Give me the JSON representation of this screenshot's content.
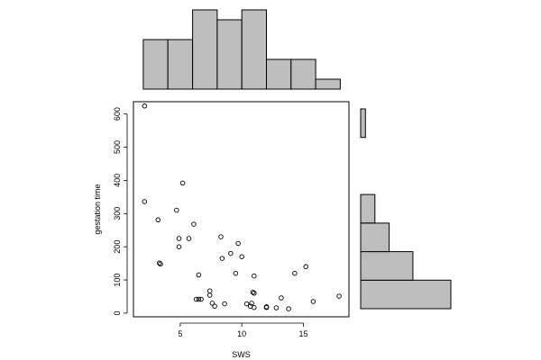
{
  "chart_data": {
    "type": "scatter",
    "title": "",
    "xlabel": "SWS",
    "ylabel": "gestation time",
    "xlim": [
      1.2,
      18.7
    ],
    "ylim": [
      -11,
      637
    ],
    "x_ticks": [
      "5",
      "10",
      "15"
    ],
    "y_ticks": [
      "0",
      "100",
      "200",
      "300",
      "400",
      "500",
      "600"
    ],
    "grid": false,
    "point_style": "open circle",
    "colors": {
      "bar_fill": "#bebebe",
      "stroke": "#000000"
    },
    "points": [
      {
        "x": 2.1,
        "y": 624
      },
      {
        "x": 2.1,
        "y": 336
      },
      {
        "x": 3.2,
        "y": 281
      },
      {
        "x": 3.3,
        "y": 151
      },
      {
        "x": 3.4,
        "y": 148
      },
      {
        "x": 4.7,
        "y": 310
      },
      {
        "x": 4.9,
        "y": 225
      },
      {
        "x": 4.9,
        "y": 200
      },
      {
        "x": 5.2,
        "y": 392
      },
      {
        "x": 5.7,
        "y": 225
      },
      {
        "x": 6.1,
        "y": 268
      },
      {
        "x": 6.3,
        "y": 42
      },
      {
        "x": 6.5,
        "y": 115
      },
      {
        "x": 6.5,
        "y": 42
      },
      {
        "x": 6.7,
        "y": 42
      },
      {
        "x": 7.4,
        "y": 67
      },
      {
        "x": 7.4,
        "y": 54
      },
      {
        "x": 7.6,
        "y": 30
      },
      {
        "x": 7.8,
        "y": 21
      },
      {
        "x": 8.3,
        "y": 230
      },
      {
        "x": 8.4,
        "y": 165
      },
      {
        "x": 8.6,
        "y": 28
      },
      {
        "x": 9.1,
        "y": 180
      },
      {
        "x": 9.5,
        "y": 120
      },
      {
        "x": 9.7,
        "y": 210
      },
      {
        "x": 10.0,
        "y": 170
      },
      {
        "x": 10.4,
        "y": 28
      },
      {
        "x": 10.7,
        "y": 21
      },
      {
        "x": 10.8,
        "y": 30
      },
      {
        "x": 10.9,
        "y": 63
      },
      {
        "x": 11.0,
        "y": 60
      },
      {
        "x": 11.0,
        "y": 112
      },
      {
        "x": 11.0,
        "y": 17
      },
      {
        "x": 12.0,
        "y": 19
      },
      {
        "x": 12.0,
        "y": 17
      },
      {
        "x": 12.8,
        "y": 16
      },
      {
        "x": 13.2,
        "y": 46
      },
      {
        "x": 13.8,
        "y": 13
      },
      {
        "x": 14.3,
        "y": 120
      },
      {
        "x": 15.2,
        "y": 140
      },
      {
        "x": 15.8,
        "y": 35
      },
      {
        "x": 17.9,
        "y": 51
      }
    ],
    "x_histogram": {
      "breaks": [
        2,
        4,
        6,
        8,
        10,
        12,
        14,
        16,
        18
      ],
      "counts": [
        5,
        5,
        8,
        7,
        8,
        3,
        3,
        1
      ]
    },
    "y_histogram": {
      "breaks": [
        0,
        100,
        200,
        300,
        400,
        500,
        600,
        700
      ],
      "counts": [
        19,
        11,
        6,
        3,
        0,
        0,
        1
      ]
    }
  }
}
